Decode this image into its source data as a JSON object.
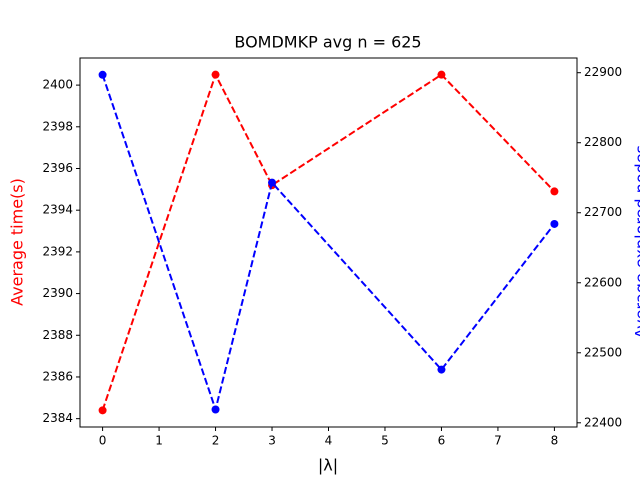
{
  "chart_data": {
    "type": "line",
    "title": "BOMDMKP avg n = 625",
    "x_label": "|λ|",
    "y_label": "Average time(s)",
    "y2_label": "Average explored nodes",
    "x": [
      0,
      2,
      3,
      6,
      8
    ],
    "series": [
      {
        "name": "Average time(s)",
        "color": "#ff0000",
        "values": [
          2384.4,
          2400.5,
          2395.2,
          2400.5,
          2394.9
        ]
      },
      {
        "name": "Average explored nodes",
        "color": "#0000ff",
        "axis": "y2",
        "values": [
          22897,
          22419,
          22743,
          22476,
          22684
        ]
      }
    ],
    "xlim": [
      -0.4,
      8.4
    ],
    "xticks": [
      0,
      1,
      2,
      3,
      4,
      5,
      6,
      7,
      8
    ],
    "ylim": [
      2383.6,
      2401.3
    ],
    "yticks": [
      2384,
      2386,
      2388,
      2390,
      2392,
      2394,
      2396,
      2398,
      2400
    ],
    "y2lim": [
      22394,
      22921
    ],
    "y2ticks": [
      22400,
      22500,
      22600,
      22700,
      22800,
      22900
    ]
  }
}
